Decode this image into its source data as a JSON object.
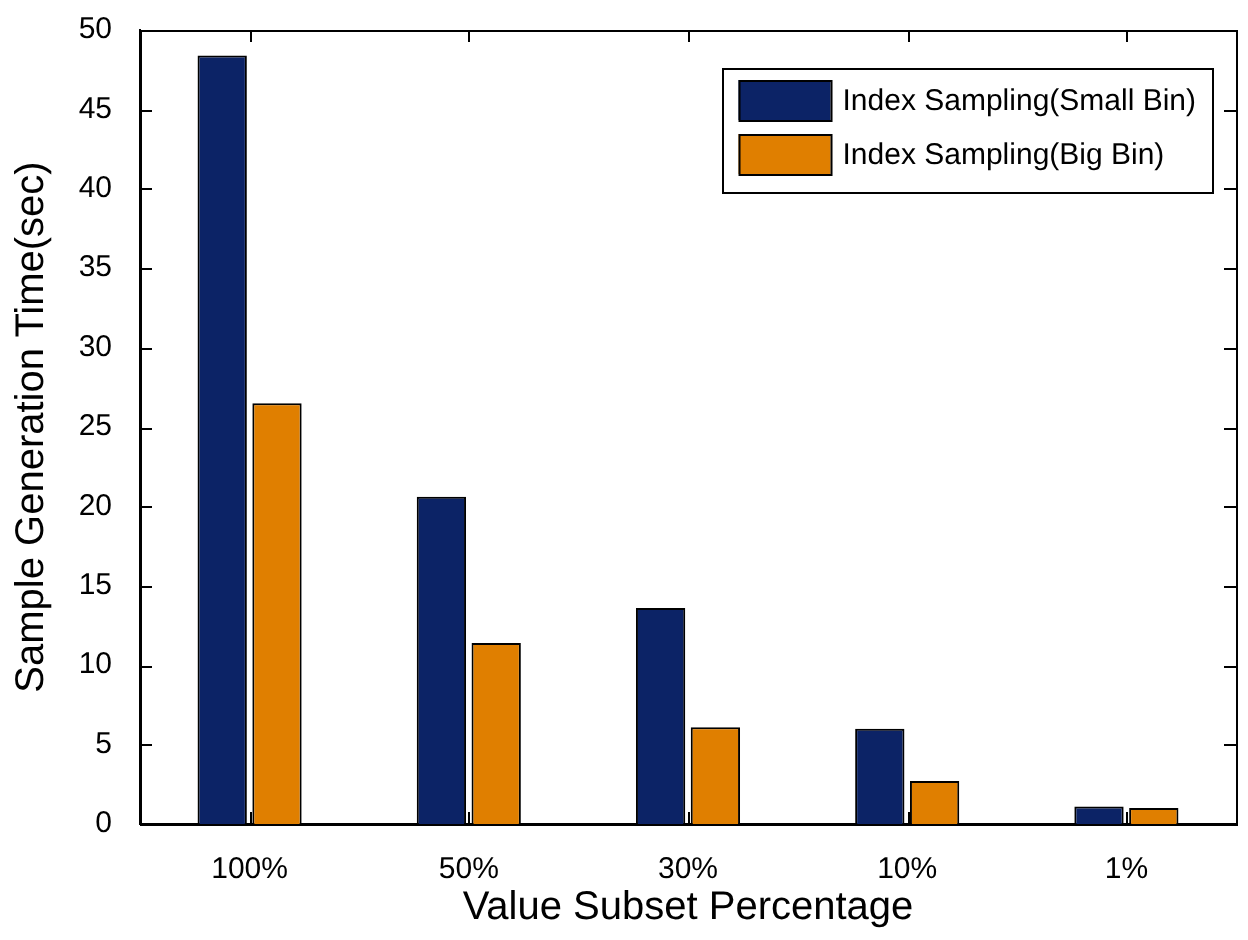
{
  "chart_data": {
    "type": "bar",
    "xlabel": "Value Subset Percentage",
    "ylabel": "Sample Generation Time(sec)",
    "categories": [
      "100%",
      "50%",
      "30%",
      "10%",
      "1%"
    ],
    "series": [
      {
        "name": "Index Sampling(Small Bin)",
        "color": "#0c2366",
        "values": [
          48.4,
          20.6,
          13.6,
          6.0,
          1.1
        ]
      },
      {
        "name": "Index Sampling(Big Bin)",
        "color": "#e07f00",
        "values": [
          26.5,
          11.4,
          6.1,
          2.7,
          1.0
        ]
      }
    ],
    "ylim": [
      0,
      50
    ],
    "yticks": [
      0,
      5,
      10,
      15,
      20,
      25,
      30,
      35,
      40,
      45,
      50
    ],
    "grid": false,
    "legend": "top right"
  }
}
